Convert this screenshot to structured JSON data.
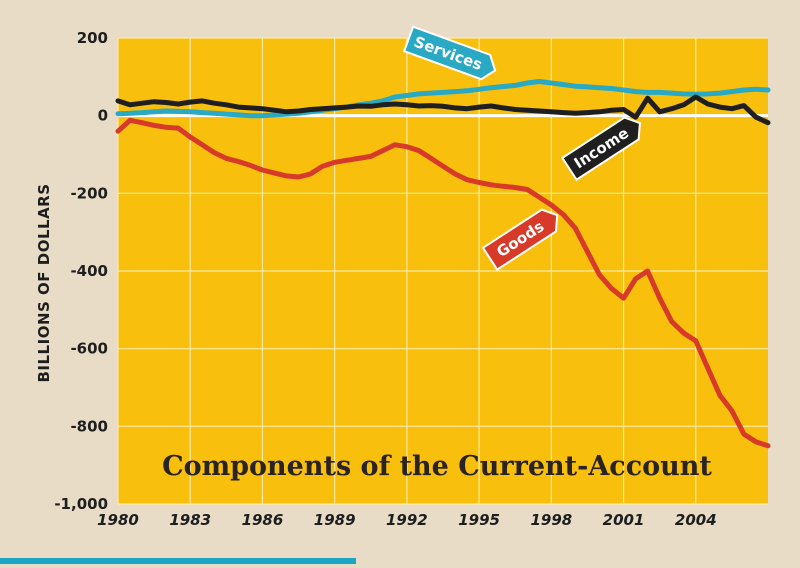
{
  "chart_data": {
    "type": "line",
    "title": "Components of the Current-Account",
    "ylabel": "BILLIONS OF DOLLARS",
    "xlabel": "",
    "xlim": [
      1980,
      2007
    ],
    "ylim": [
      -1000,
      200
    ],
    "xticks": [
      1980,
      1983,
      1986,
      1989,
      1992,
      1995,
      1998,
      2001,
      2004
    ],
    "xtick_labels": [
      "1980",
      "1983",
      "1986",
      "1989",
      "1992",
      "1995",
      "1998",
      "2001",
      "2004"
    ],
    "yticks": [
      200,
      0,
      -200,
      -400,
      -600,
      -800,
      -1000
    ],
    "ytick_labels": [
      "200",
      "0",
      "-200",
      "-400",
      "-600",
      "-800",
      "-1,000"
    ],
    "grid": true,
    "colors": {
      "plot_background": "#f8bf0c",
      "outer_background": "#e8dcc6",
      "grid": "#fdeaa4",
      "zero_line": "#ffffff",
      "services": "#29a9c4",
      "income": "#1f1f1f",
      "goods": "#d83a2a"
    },
    "series": [
      {
        "name": "Services",
        "key": "services",
        "x": [
          1980,
          1980.5,
          1981,
          1981.5,
          1982,
          1982.5,
          1983,
          1983.5,
          1984,
          1984.5,
          1985,
          1985.5,
          1986,
          1986.5,
          1987,
          1987.5,
          1988,
          1988.5,
          1989,
          1989.5,
          1990,
          1990.5,
          1991,
          1991.5,
          1992,
          1992.5,
          1993,
          1993.5,
          1994,
          1994.5,
          1995,
          1995.5,
          1996,
          1996.5,
          1997,
          1997.5,
          1998,
          1998.5,
          1999,
          1999.5,
          2000,
          2000.5,
          2001,
          2001.5,
          2002,
          2002.5,
          2003,
          2003.5,
          2004,
          2004.5,
          2005,
          2005.5,
          2006,
          2006.5,
          2007
        ],
        "y": [
          5,
          6,
          8,
          10,
          12,
          11,
          10,
          8,
          6,
          4,
          2,
          0,
          0,
          2,
          4,
          6,
          10,
          14,
          18,
          22,
          28,
          32,
          38,
          48,
          52,
          56,
          58,
          60,
          62,
          64,
          68,
          72,
          75,
          78,
          84,
          88,
          84,
          80,
          76,
          74,
          72,
          70,
          66,
          62,
          60,
          60,
          58,
          56,
          55,
          56,
          58,
          62,
          66,
          68,
          66
        ]
      },
      {
        "name": "Income",
        "key": "income",
        "x": [
          1980,
          1980.5,
          1981,
          1981.5,
          1982,
          1982.5,
          1983,
          1983.5,
          1984,
          1984.5,
          1985,
          1985.5,
          1986,
          1986.5,
          1987,
          1987.5,
          1988,
          1988.5,
          1989,
          1989.5,
          1990,
          1990.5,
          1991,
          1991.5,
          1992,
          1992.5,
          1993,
          1993.5,
          1994,
          1994.5,
          1995,
          1995.5,
          1996,
          1996.5,
          1997,
          1997.5,
          1998,
          1998.5,
          1999,
          1999.5,
          2000,
          2000.5,
          2001,
          2001.5,
          2002,
          2002.5,
          2003,
          2003.5,
          2004,
          2004.5,
          2005,
          2005.5,
          2006,
          2006.5,
          2007
        ],
        "y": [
          38,
          28,
          32,
          36,
          34,
          30,
          35,
          38,
          32,
          28,
          22,
          20,
          18,
          14,
          10,
          12,
          16,
          18,
          20,
          22,
          25,
          24,
          28,
          30,
          28,
          25,
          26,
          24,
          20,
          18,
          22,
          25,
          20,
          16,
          14,
          12,
          10,
          8,
          6,
          8,
          10,
          14,
          16,
          -4,
          45,
          10,
          18,
          28,
          48,
          30,
          22,
          18,
          26,
          -4,
          -18
        ]
      },
      {
        "name": "Goods",
        "key": "goods",
        "x": [
          1980,
          1980.5,
          1981,
          1981.5,
          1982,
          1982.5,
          1983,
          1983.5,
          1984,
          1984.5,
          1985,
          1985.5,
          1986,
          1986.5,
          1987,
          1987.5,
          1988,
          1988.5,
          1989,
          1989.5,
          1990,
          1990.5,
          1991,
          1991.5,
          1992,
          1992.5,
          1993,
          1993.5,
          1994,
          1994.5,
          1995,
          1995.5,
          1996,
          1996.5,
          1997,
          1997.5,
          1998,
          1998.5,
          1999,
          1999.5,
          2000,
          2000.5,
          2001,
          2001.5,
          2002,
          2002.5,
          2003,
          2003.5,
          2004,
          2004.5,
          2005,
          2005.5,
          2006,
          2006.5,
          2007
        ],
        "y": [
          -40,
          -12,
          -18,
          -25,
          -30,
          -32,
          -55,
          -75,
          -95,
          -110,
          -118,
          -128,
          -140,
          -148,
          -155,
          -158,
          -150,
          -130,
          -120,
          -115,
          -110,
          -105,
          -90,
          -75,
          -80,
          -90,
          -110,
          -130,
          -150,
          -165,
          -172,
          -178,
          -182,
          -185,
          -190,
          -210,
          -230,
          -255,
          -290,
          -350,
          -410,
          -445,
          -470,
          -420,
          -400,
          -470,
          -530,
          -560,
          -580,
          -650,
          -720,
          -760,
          -820,
          -840,
          -850
        ]
      }
    ],
    "labels": [
      {
        "key": "services",
        "text": "Services"
      },
      {
        "key": "income",
        "text": "Income"
      },
      {
        "key": "goods",
        "text": "Goods"
      }
    ]
  }
}
